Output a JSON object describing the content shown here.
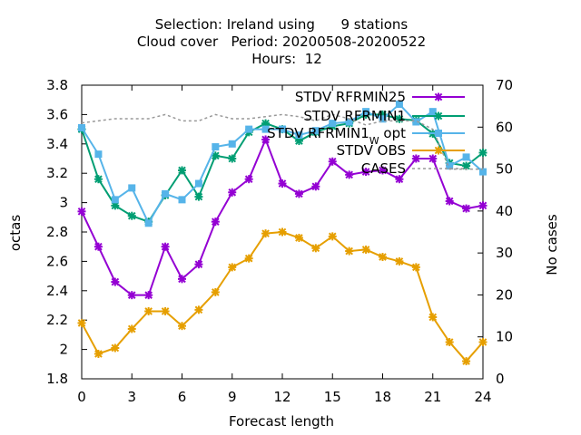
{
  "chart_data": {
    "type": "line",
    "title_lines": [
      "Selection: Ireland using      9 stations",
      "Cloud cover   Period: 20200508-20200522",
      "Hours:  12"
    ],
    "xlabel": "Forecast length",
    "ylabel": "octas",
    "y2label": "No cases",
    "xlim": [
      0,
      24
    ],
    "ylim": [
      1.8,
      3.8
    ],
    "y2lim": [
      0,
      70
    ],
    "x_ticks": [
      0,
      3,
      6,
      9,
      12,
      15,
      18,
      21,
      24
    ],
    "y_ticks": [
      "1.8",
      "2",
      "2.2",
      "2.4",
      "2.6",
      "2.8",
      "3",
      "3.2",
      "3.4",
      "3.6",
      "3.8"
    ],
    "y2_ticks": [
      0,
      10,
      20,
      30,
      40,
      50,
      60,
      70
    ],
    "grid": false,
    "legend_position": "top-right",
    "x": [
      0,
      1,
      2,
      3,
      4,
      5,
      6,
      7,
      8,
      9,
      10,
      11,
      12,
      13,
      14,
      15,
      16,
      17,
      18,
      19,
      20,
      21,
      22,
      23,
      24
    ],
    "series": [
      {
        "name": "STDV RFRMIN25",
        "color": "#9400d3",
        "marker": "star",
        "axis": "left",
        "values": [
          2.94,
          2.7,
          2.46,
          2.37,
          2.37,
          2.7,
          2.48,
          2.58,
          2.87,
          3.07,
          3.16,
          3.43,
          3.13,
          3.06,
          3.11,
          3.28,
          3.19,
          3.21,
          3.22,
          3.16,
          3.3,
          3.3,
          3.01,
          2.96,
          2.98
        ]
      },
      {
        "name": "STDV RFRMIN1",
        "color": "#009e73",
        "marker": "star",
        "axis": "left",
        "values": [
          3.5,
          3.16,
          2.98,
          2.91,
          2.87,
          3.05,
          3.22,
          3.04,
          3.32,
          3.3,
          3.48,
          3.54,
          3.5,
          3.42,
          3.48,
          3.52,
          3.54,
          3.6,
          3.6,
          3.57,
          3.56,
          3.47,
          3.27,
          3.25,
          3.34
        ]
      },
      {
        "name": "STDV RFRMIN1_W_opt",
        "label_main": "STDV RFRMIN1",
        "label_sub": "W",
        "label_tail": " opt",
        "color": "#56b4e9",
        "marker": "box",
        "axis": "left",
        "values": [
          3.51,
          3.33,
          3.02,
          3.1,
          2.86,
          3.06,
          3.02,
          3.13,
          3.38,
          3.4,
          3.5,
          3.5,
          3.5,
          3.46,
          3.49,
          3.54,
          3.55,
          3.62,
          3.57,
          3.67,
          3.55,
          3.62,
          3.25,
          3.31,
          3.21
        ]
      },
      {
        "name": "STDV OBS",
        "color": "#e69f00",
        "marker": "star",
        "axis": "left",
        "values": [
          2.18,
          1.97,
          2.01,
          2.14,
          2.26,
          2.26,
          2.16,
          2.27,
          2.39,
          2.56,
          2.62,
          2.79,
          2.8,
          2.76,
          2.69,
          2.77,
          2.67,
          2.68,
          2.63,
          2.6,
          2.56,
          2.22,
          2.05,
          1.92,
          2.05
        ]
      },
      {
        "name": "CASES",
        "color": "#999999",
        "marker": "none",
        "dashed": true,
        "axis": "right",
        "values": [
          61,
          61.5,
          62,
          62,
          62,
          63,
          61.5,
          61.5,
          63,
          62,
          62,
          62.5,
          63,
          62.5,
          61.5,
          63,
          62,
          60.5,
          61.5,
          61.5,
          61.5,
          59.5,
          50,
          50,
          50
        ]
      }
    ]
  }
}
